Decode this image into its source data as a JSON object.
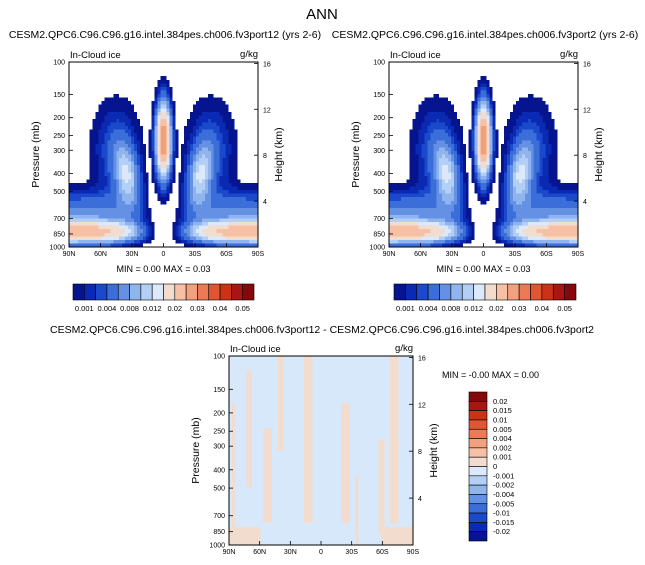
{
  "page_title": "ANN",
  "colors": {
    "pos": [
      "#f2dccd",
      "#f7c0a5",
      "#f3a07e",
      "#ec7a55",
      "#e05532",
      "#cc3216",
      "#a91512",
      "#85090a"
    ],
    "neg": [
      "#dce9fa",
      "#b3cff5",
      "#8fb4ee",
      "#6591e4",
      "#3c6ed9",
      "#1a49cb",
      "#0a2ab4",
      "#06158f"
    ],
    "zero": "#d8e8fb"
  },
  "chart_data": [
    {
      "type": "heatmap",
      "title": "CESM2.QPC6.C96.C96.g16.intel.384pes.ch006.fv3port12 (yrs 2-6)",
      "field_label": "In-Cloud ice",
      "units": "g/kg",
      "ylabel": "Pressure (mb)",
      "ylabel_right": "Height (km)",
      "x_ticks": [
        "90N",
        "60N",
        "30N",
        "0",
        "30S",
        "60S",
        "90S"
      ],
      "y_ticks": [
        "100",
        "150",
        "200",
        "250",
        "300",
        "400",
        "500",
        "700",
        "850",
        "1000"
      ],
      "height_ticks": [
        "16",
        "12",
        "8",
        "4"
      ],
      "min_max": "MIN =  0.00  MAX =  0.03",
      "colorbar": {
        "orientation": "horizontal",
        "labels": [
          "0.001",
          "0.004",
          "0.008",
          "0.012",
          "0.02",
          "0.03",
          "0.04",
          "0.05"
        ],
        "levels": [
          0.001,
          0.002,
          0.003,
          0.004,
          0.006,
          0.008,
          0.01,
          0.012,
          0.015,
          0.02,
          0.025,
          0.03,
          0.035,
          0.04,
          0.045,
          0.05,
          0.06
        ]
      },
      "features": {
        "tropical_max_lat": 0,
        "tropical_max_pressure": 270,
        "tropical_max_value": 0.03,
        "midlat_branch_lats": [
          -40,
          40
        ],
        "midlat_branch_value": 0.014,
        "lowlevel_pressure": 820,
        "lowlevel_value": 0.022
      }
    },
    {
      "type": "heatmap",
      "title": "CESM2.QPC6.C96.C96.g16.intel.384pes.ch006.fv3port2 (yrs 2-6)",
      "field_label": "In-Cloud ice",
      "units": "g/kg",
      "ylabel": "Pressure (mb)",
      "ylabel_right": "Height (km)",
      "x_ticks": [
        "90N",
        "60N",
        "30N",
        "0",
        "30S",
        "60S",
        "90S"
      ],
      "y_ticks": [
        "100",
        "150",
        "200",
        "250",
        "300",
        "400",
        "500",
        "700",
        "850",
        "1000"
      ],
      "height_ticks": [
        "16",
        "12",
        "8",
        "4"
      ],
      "min_max": "MIN =  0.00  MAX =  0.03",
      "colorbar": {
        "orientation": "horizontal",
        "labels": [
          "0.001",
          "0.004",
          "0.008",
          "0.012",
          "0.02",
          "0.03",
          "0.04",
          "0.05"
        ],
        "levels": [
          0.001,
          0.002,
          0.003,
          0.004,
          0.006,
          0.008,
          0.01,
          0.012,
          0.015,
          0.02,
          0.025,
          0.03,
          0.035,
          0.04,
          0.045,
          0.05,
          0.06
        ]
      },
      "features": {
        "tropical_max_lat": 0,
        "tropical_max_pressure": 270,
        "tropical_max_value": 0.03,
        "midlat_branch_lats": [
          -40,
          40
        ],
        "midlat_branch_value": 0.014,
        "lowlevel_pressure": 820,
        "lowlevel_value": 0.022
      }
    },
    {
      "type": "heatmap",
      "title": "CESM2.QPC6.C96.C96.g16.intel.384pes.ch006.fv3port12 - CESM2.QPC6.C96.C96.g16.intel.384pes.ch006.fv3port2",
      "field_label": "In-Cloud ice",
      "units": "g/kg",
      "ylabel": "Pressure (mb)",
      "ylabel_right": "Height (km)",
      "x_ticks": [
        "90N",
        "60N",
        "30N",
        "0",
        "30S",
        "60S",
        "90S"
      ],
      "y_ticks": [
        "100",
        "150",
        "200",
        "250",
        "300",
        "400",
        "500",
        "700",
        "850",
        "1000"
      ],
      "height_ticks": [
        "16",
        "12",
        "8",
        "4"
      ],
      "min_max": "MIN = -0.00  MAX =  0.00",
      "colorbar": {
        "orientation": "vertical",
        "labels": [
          "0.02",
          "0.015",
          "0.01",
          "0.005",
          "0.004",
          "0.002",
          "0.001",
          "0",
          "-0.001",
          "-0.002",
          "-0.004",
          "-0.005",
          "-0.01",
          "-0.015",
          "-0.02"
        ],
        "levels": [
          0.02,
          0.015,
          0.01,
          0.005,
          0.004,
          0.002,
          0.001,
          0,
          -0.001,
          -0.002,
          -0.004,
          -0.005,
          -0.01,
          -0.015,
          -0.02
        ]
      },
      "features": {
        "pattern": "near-zero differences, small positive (+0.001) bands"
      }
    }
  ]
}
